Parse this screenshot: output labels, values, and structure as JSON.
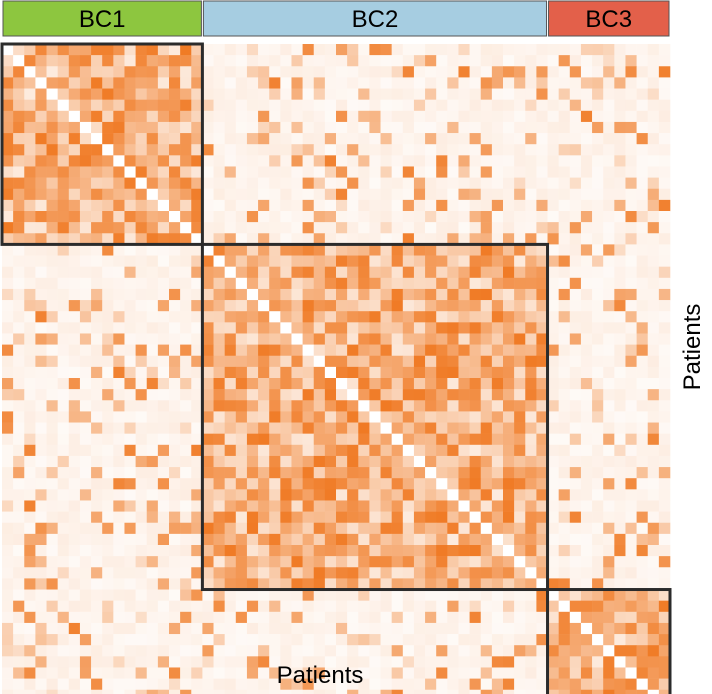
{
  "chart_data": {
    "type": "heatmap",
    "title": "",
    "xlabel": "Patients",
    "ylabel": "Patients",
    "n_patients": 60,
    "clusters": [
      {
        "name": "BC1",
        "start": 0,
        "count": 18,
        "color": "#8dc63f"
      },
      {
        "name": "BC2",
        "start": 18,
        "count": 31,
        "color": "#a6cde1"
      },
      {
        "name": "BC3",
        "start": 49,
        "count": 11,
        "color": "#e3604a"
      }
    ],
    "colors": {
      "low": "#ffffff",
      "high": "#f07a24",
      "box": "#2b2b2b"
    },
    "value_range": [
      0,
      1
    ],
    "diagonal_value": 0,
    "within_cluster_level": "high",
    "between_cluster_level": "low"
  }
}
